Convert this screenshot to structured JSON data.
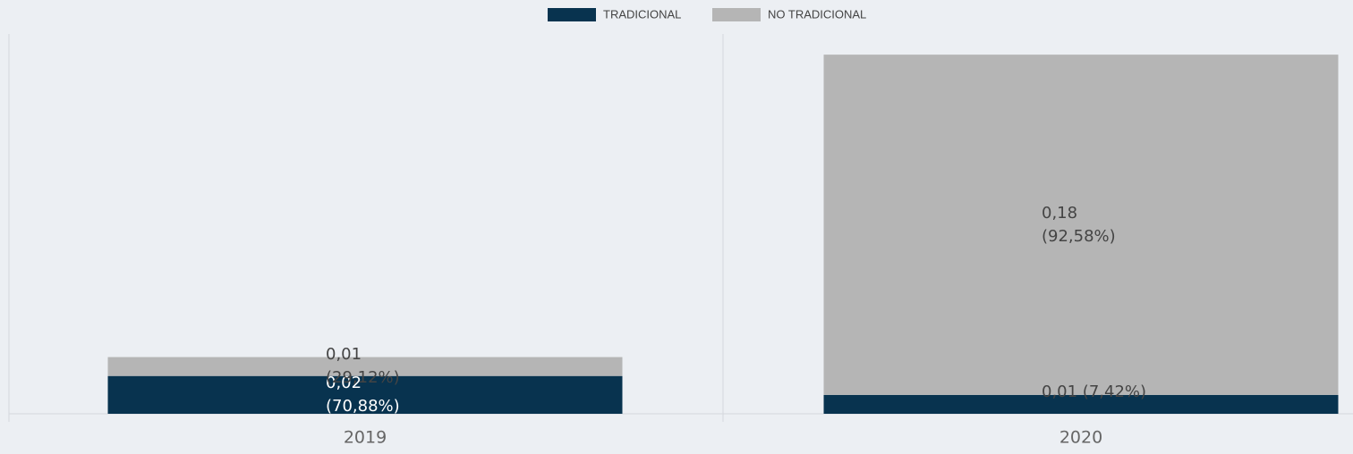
{
  "chart_data": {
    "type": "stacked_bar",
    "categories": [
      "2019",
      "2020"
    ],
    "series": [
      {
        "name": "TRADICIONAL",
        "color": "#08334f",
        "values": [
          0.02,
          0.01
        ],
        "value_labels": [
          "0,02 (70,88%)",
          "0,01 (7,42%)"
        ]
      },
      {
        "name": "NO TRADICIONAL",
        "color": "#b5b5b5",
        "values": [
          0.01,
          0.18
        ],
        "value_labels": [
          "0,01 (29,12%)",
          "0,18 (92,58%)"
        ]
      }
    ],
    "ylim": [
      0,
      0.2
    ],
    "legend": "top"
  }
}
